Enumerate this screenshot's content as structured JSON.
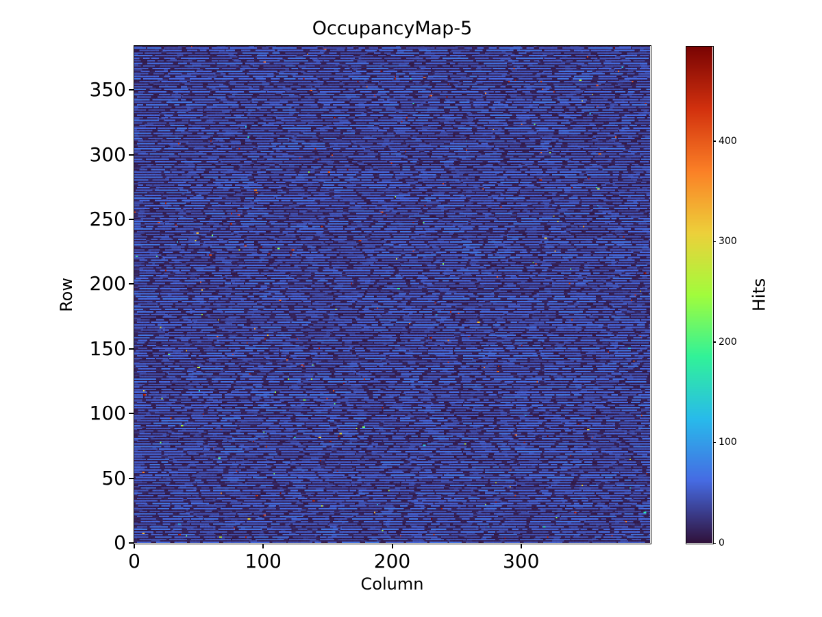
{
  "figure": {
    "background": "#ffffff",
    "border_color": "#000000",
    "text_color": "#000000"
  },
  "chart_data": {
    "type": "heatmap",
    "title": "OccupancyMap-5",
    "xlabel": "Column",
    "ylabel": "Row",
    "x_range": [
      0,
      400
    ],
    "y_range": [
      0,
      384
    ],
    "x_ticks": [
      0,
      100,
      200,
      300
    ],
    "y_ticks": [
      0,
      50,
      100,
      150,
      200,
      250,
      300,
      350
    ],
    "grid": false,
    "colorbar": {
      "label": "Hits",
      "ticks": [
        0,
        100,
        200,
        300,
        400
      ],
      "vmin": 0,
      "vmax": 494,
      "colormap": "turbo",
      "position": "right"
    },
    "colormap_anchors": [
      [
        48,
        18,
        59
      ],
      [
        70,
        107,
        227
      ],
      [
        40,
        187,
        235
      ],
      [
        49,
        242,
        153
      ],
      [
        162,
        252,
        60
      ],
      [
        237,
        208,
        58
      ],
      [
        251,
        128,
        38
      ],
      [
        210,
        49,
        14
      ],
      [
        122,
        4,
        3
      ]
    ],
    "description": "Pixel-detector occupancy map on a 400x384 grid (origin lower-left). Alternating rows carry dashed horizontal blue stripe segments of roughly 40-72 hits over a dark ~5-15 hit background; the intervening rows are mostly dark with short faint dashes. A few hundred isolated hot pixels (cyan, green, yellow, orange, red up to ~494 hits) are scattered across the map.",
    "pattern": {
      "rows": 384,
      "cols": 400,
      "seed": 1337,
      "stripe_row_parity": 0,
      "stripe_on_len": [
        4,
        22
      ],
      "stripe_on_value": [
        42,
        72
      ],
      "stripe_gap_len": [
        1,
        5
      ],
      "stripe_gap_value": [
        6,
        16
      ],
      "dim_on_len": [
        2,
        9
      ],
      "dim_on_value": [
        18,
        36
      ],
      "dim_gap_len": [
        8,
        42
      ],
      "dim_gap_value": [
        5,
        13
      ],
      "hot_count": 260,
      "hot_tiers": [
        {
          "p": 0.55,
          "v": [
            400,
            494
          ]
        },
        {
          "p": 0.25,
          "v": [
            250,
            400
          ]
        },
        {
          "p": 0.2,
          "v": [
            110,
            250
          ]
        }
      ],
      "hot_double_chance": 0.3
    }
  }
}
